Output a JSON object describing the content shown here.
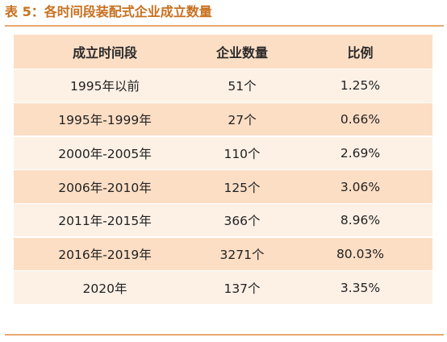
{
  "caption": "表 5：各时间段装配式企业成立数量",
  "table": {
    "headers": [
      "成立时间段",
      "企业数量",
      "比例"
    ],
    "rows": [
      [
        "1995年以前",
        "51个",
        "1.25%"
      ],
      [
        "1995年-1999年",
        "27个",
        "0.66%"
      ],
      [
        "2000年-2005年",
        "110个",
        "2.69%"
      ],
      [
        "2006年-2010年",
        "125个",
        "3.06%"
      ],
      [
        "2011年-2015年",
        "366个",
        "8.96%"
      ],
      [
        "2016年-2019年",
        "3271个",
        "80.03%"
      ],
      [
        "2020年",
        "137个",
        "3.35%"
      ]
    ]
  },
  "colors": {
    "accent": "#c8701f",
    "rule": "#e9a870",
    "row_dark": "#fcdec5",
    "row_light": "#fdf1e6"
  }
}
